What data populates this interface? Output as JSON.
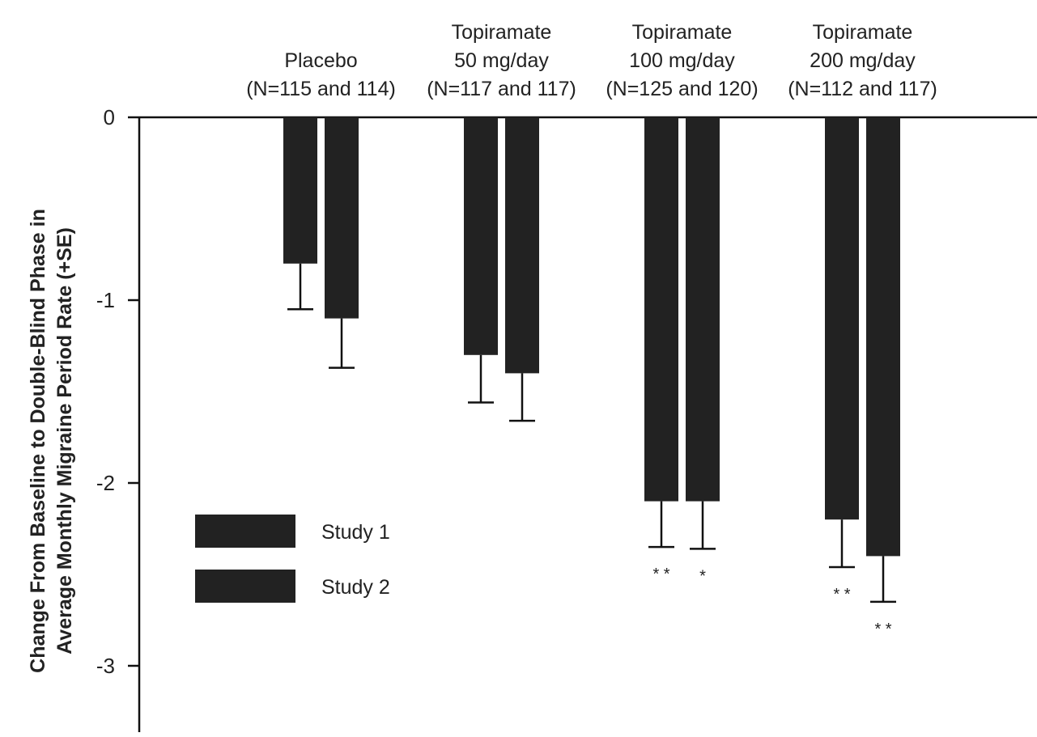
{
  "chart_data": {
    "type": "bar",
    "title": "",
    "ylabel_lines": [
      "Change From Baseline to Double-Blind Phase in",
      "Average Monthly Migraine Period Rate (+SE)"
    ],
    "categories": [
      {
        "lines": [
          "Placebo",
          "(N=115 and 114)"
        ]
      },
      {
        "lines": [
          "Topiramate",
          "50 mg/day",
          "(N=117 and 117)"
        ]
      },
      {
        "lines": [
          "Topiramate",
          "100 mg/day",
          "(N=125 and 120)"
        ]
      },
      {
        "lines": [
          "Topiramate",
          "200 mg/day",
          "(N=112 and 117)"
        ]
      }
    ],
    "series": [
      {
        "name": "Study 1",
        "values": [
          -0.8,
          -1.3,
          -2.1,
          -2.2
        ],
        "se": [
          0.25,
          0.26,
          0.25,
          0.26
        ],
        "significance": [
          "",
          "",
          "* *",
          "* *"
        ]
      },
      {
        "name": "Study 2",
        "values": [
          -1.1,
          -1.4,
          -2.1,
          -2.4
        ],
        "se": [
          0.27,
          0.26,
          0.26,
          0.25
        ],
        "significance": [
          "",
          "",
          "*",
          "* *"
        ]
      }
    ],
    "yticks": [
      {
        "value": 0,
        "label": "0"
      },
      {
        "value": -1,
        "label": "-1"
      },
      {
        "value": -2,
        "label": "-2"
      },
      {
        "value": -3,
        "label": "-3"
      }
    ],
    "ylim": [
      -3.3,
      0
    ],
    "bar_color": "#222222",
    "legend_placement": "lower-left",
    "grid": false
  }
}
